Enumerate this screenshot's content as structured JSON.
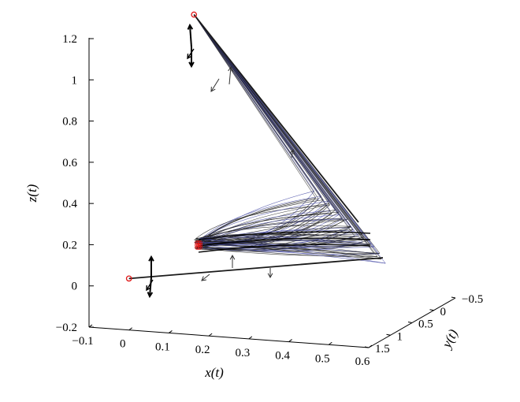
{
  "chart_data": {
    "type": "line",
    "projection": "3d",
    "xlabel": "x(t)",
    "ylabel": "y(t)",
    "zlabel": "z(t)",
    "x_ticks": [
      "−0.1",
      "0",
      "0.1",
      "0.2",
      "0.3",
      "0.4",
      "0.5",
      "0.6"
    ],
    "y_ticks": [
      "−0.5",
      "0",
      "0.5",
      "1",
      "1.5"
    ],
    "z_ticks": [
      "−0.2",
      "0",
      "0.2",
      "0.4",
      "0.6",
      "0.8",
      "1",
      "1.2"
    ],
    "xlim": [
      -0.1,
      0.6
    ],
    "ylim": [
      -0.5,
      1.5
    ],
    "zlim": [
      -0.2,
      1.2
    ],
    "grid": false,
    "colors": {
      "trajectory": "#1a1a1a",
      "reference": "#4a4fa8",
      "endpoint": "#e01818",
      "arrow": "#333333"
    },
    "start_point": {
      "x": 0.0,
      "y": 1.5,
      "z": 0.05
    },
    "end_point": {
      "x": 0.0,
      "y": 0.0,
      "z": 1.15
    },
    "turn_region": {
      "x": 0.2,
      "y": 0.8,
      "z": 0.2
    },
    "apex_region": {
      "x": 0.55,
      "y": 0.2,
      "z": 0.2
    },
    "trajectory_count": 40
  }
}
